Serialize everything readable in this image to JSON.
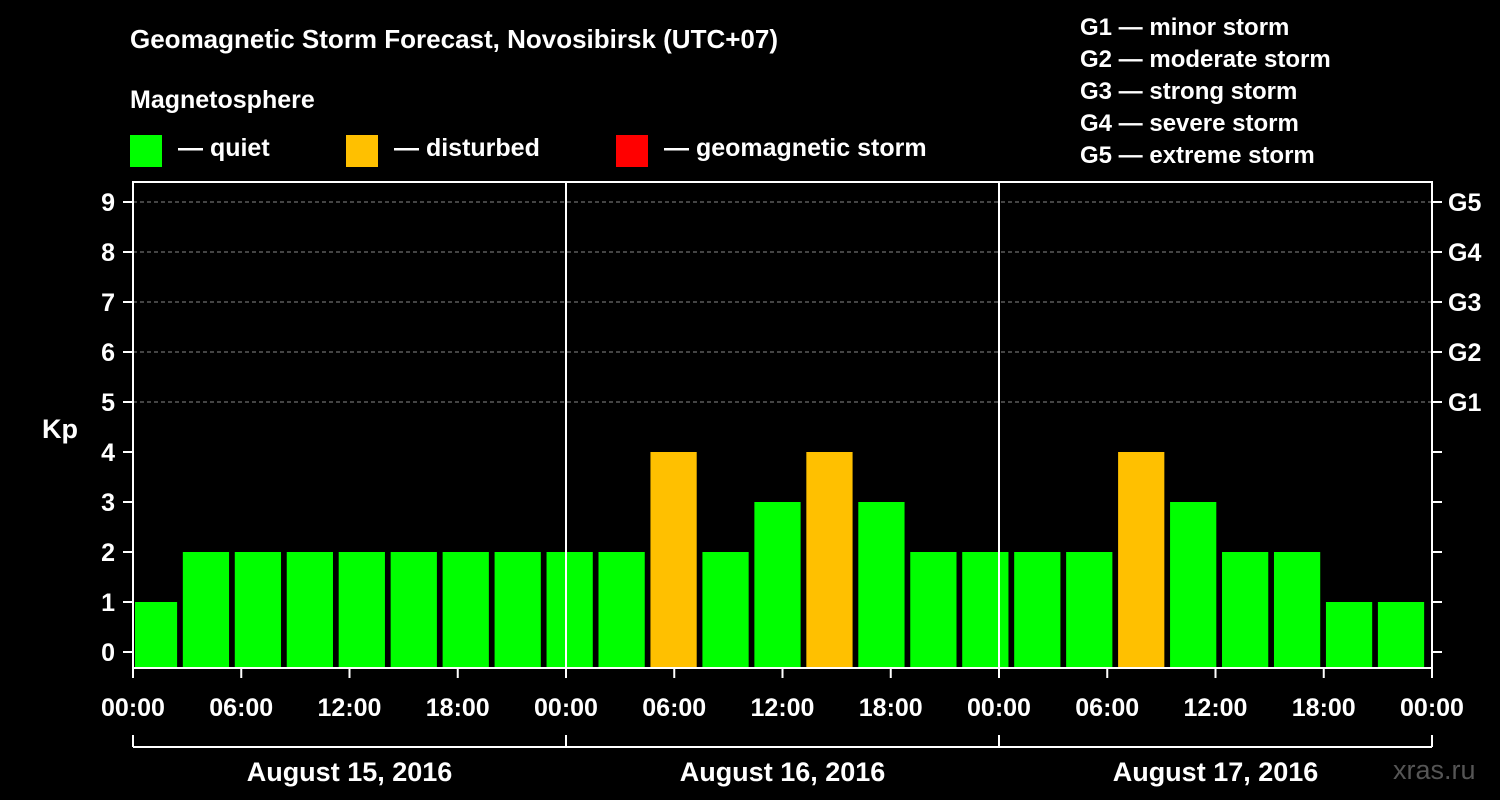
{
  "title": "Geomagnetic Storm Forecast, Novosibirsk (UTC+07)",
  "magnetosphere_heading": "Magnetosphere",
  "legend": [
    {
      "label": "— quiet",
      "color": "#00ff00"
    },
    {
      "label": "— disturbed",
      "color": "#ffc000"
    },
    {
      "label": "— geomagnetic storm",
      "color": "#ff0000"
    }
  ],
  "storm_levels": [
    "G1 — minor storm",
    "G2 — moderate storm",
    "G3 — strong storm",
    "G4 — severe storm",
    "G5 — extreme storm"
  ],
  "watermark": "xras.ru",
  "chart_data": {
    "type": "bar",
    "ylabel": "Kp",
    "ylim": [
      0,
      9
    ],
    "y_ticks": [
      0,
      1,
      2,
      3,
      4,
      5,
      6,
      7,
      8,
      9
    ],
    "right_axis_ticks": [
      {
        "kp": 5,
        "label": "G1"
      },
      {
        "kp": 6,
        "label": "G2"
      },
      {
        "kp": 7,
        "label": "G3"
      },
      {
        "kp": 8,
        "label": "G4"
      },
      {
        "kp": 9,
        "label": "G5"
      }
    ],
    "x_tick_labels": [
      "00:00",
      "06:00",
      "12:00",
      "18:00",
      "00:00",
      "06:00",
      "12:00",
      "18:00",
      "00:00",
      "06:00",
      "12:00",
      "18:00",
      "00:00"
    ],
    "days": [
      "August 15, 2016",
      "August 16, 2016",
      "August 17, 2016"
    ],
    "interval_hours": 3,
    "values": [
      1,
      2,
      2,
      2,
      2,
      2,
      2,
      2,
      2,
      2,
      4,
      2,
      3,
      4,
      3,
      2,
      2,
      2,
      2,
      4,
      3,
      2,
      2,
      1,
      1
    ],
    "status": [
      "quiet",
      "quiet",
      "quiet",
      "quiet",
      "quiet",
      "quiet",
      "quiet",
      "quiet",
      "quiet",
      "quiet",
      "disturbed",
      "quiet",
      "quiet",
      "disturbed",
      "quiet",
      "quiet",
      "quiet",
      "quiet",
      "quiet",
      "disturbed",
      "quiet",
      "quiet",
      "quiet",
      "quiet",
      "quiet"
    ],
    "status_colors": {
      "quiet": "#00ff00",
      "disturbed": "#ffc000",
      "storm": "#ff0000"
    },
    "grid": "dashed at Kp 5-9"
  }
}
